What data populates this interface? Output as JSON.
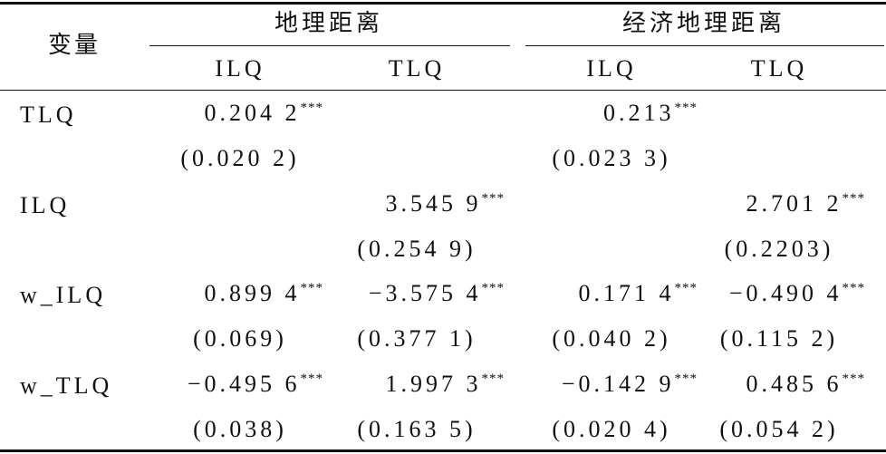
{
  "table": {
    "header": {
      "row_label": "变量",
      "groups": [
        {
          "label": "地理距离",
          "columns": [
            "ILQ",
            "TLQ"
          ]
        },
        {
          "label": "经济地理距离",
          "columns": [
            "ILQ",
            "TLQ"
          ]
        }
      ]
    },
    "rows": [
      {
        "label": "TLQ",
        "coef": [
          {
            "value": "0.204 2",
            "sig": "***"
          },
          null,
          {
            "value": "0.213",
            "sig": "***"
          },
          null
        ],
        "se": [
          "(0.020 2)",
          null,
          "(0.023 3)",
          null
        ]
      },
      {
        "label": "ILQ",
        "coef": [
          null,
          {
            "value": "3.545 9",
            "sig": "***"
          },
          null,
          {
            "value": "2.701 2",
            "sig": "***"
          }
        ],
        "se": [
          null,
          "(0.254 9)",
          null,
          "(0.2203)"
        ]
      },
      {
        "label": "w_ILQ",
        "coef": [
          {
            "value": "0.899 4",
            "sig": "***"
          },
          {
            "value": "−3.575 4",
            "sig": "***"
          },
          {
            "value": "0.171 4",
            "sig": "***"
          },
          {
            "value": "−0.490 4",
            "sig": "***"
          }
        ],
        "se": [
          "(0.069)",
          "(0.377 1)",
          "(0.040 2)",
          "(0.115 2)"
        ]
      },
      {
        "label": "w_TLQ",
        "coef": [
          {
            "value": "−0.495 6",
            "sig": "***"
          },
          {
            "value": "1.997 3",
            "sig": "***"
          },
          {
            "value": "−0.142 9",
            "sig": "***"
          },
          {
            "value": "0.485 6",
            "sig": "***"
          }
        ],
        "se": [
          "(0.038)",
          "(0.163 5)",
          "(0.020 4)",
          "(0.054 2)"
        ]
      }
    ]
  }
}
